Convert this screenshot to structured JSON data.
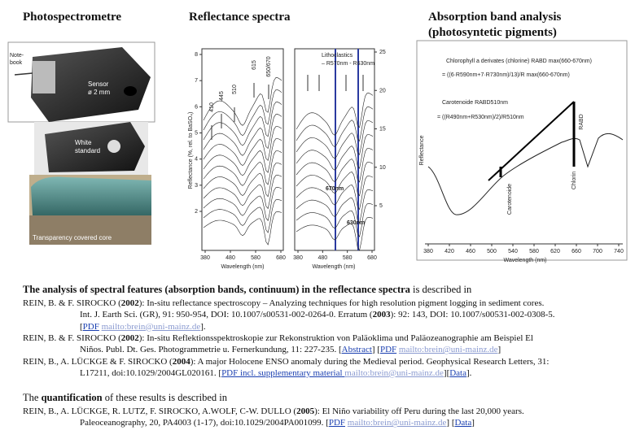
{
  "headings": {
    "photo": "Photospectrometre",
    "spectra": "Reflectance spectra",
    "absorption": [
      "Absorption band analysis",
      "(photosyntetic pigments)"
    ]
  },
  "photos": {
    "notebook": [
      "Note-",
      "book"
    ],
    "sensor": [
      "Sensor",
      "ø 2 mm"
    ],
    "white": [
      "White",
      "standard"
    ],
    "core": "Transparency covered core"
  },
  "figures": {
    "reflectance_left": {
      "ylabel": "Reflectance (%, rel. to BaSO₄)",
      "xlabel": "Wavelength (nm)",
      "yticks": [
        2,
        3,
        4,
        5,
        6,
        7,
        8
      ],
      "xticks": [
        380,
        480,
        580,
        680
      ],
      "annotations": [
        "410",
        "445",
        "510",
        "615",
        "650/670"
      ]
    },
    "reflectance_right": {
      "title": [
        "Lithoclastics",
        "– R570nm - R630nm"
      ],
      "xlabel": "Wavelength (nm)",
      "yticks": [
        5,
        10,
        15,
        20,
        25
      ],
      "xticks": [
        380,
        480,
        580,
        680
      ],
      "annotations": [
        "670nm",
        "630nm"
      ]
    },
    "absorption": {
      "ylabel": "Reflectance",
      "xlabel": "Wavelength (nm)",
      "xticks": [
        380,
        420,
        460,
        500,
        540,
        580,
        620,
        660,
        700,
        740
      ],
      "chlorophyll": [
        "Chlorophyll a derivates (chlorine) RABD max(660-670nm)",
        "= ((6·R590nm+7·R730nm)/13)/R max(660-670nm)"
      ],
      "carotenoid": [
        "Carotenoide RABD510nm",
        "= ((R490nm+R530nm)/2)/R510nm"
      ],
      "labels": [
        "RABD",
        "Chlorin",
        "Carotenoide"
      ]
    }
  },
  "intro": [
    {
      "text": "The analysis of spectral  features (absorption bands, continuum) in the reflectance spectra",
      "bold": true
    },
    {
      "text": " is described in"
    }
  ],
  "references1": [
    [
      {
        "text": "REIN, B. & F. SIROCKO ("
      },
      {
        "text": "2002",
        "bold": true
      },
      {
        "text": "): In-situ reflectance spectroscopy – Analyzing techniques for high resolution pigment logging in sediment cores."
      }
    ],
    [
      {
        "text": "Int. J. Earth Sci. (GR), 91: 950-954, DOI: 10.1007/s00531-002-0264-0. Erratum ("
      },
      {
        "text": "2003",
        "bold": true
      },
      {
        "text": "): 92: 143,  DOI: 10.1007/s00531-002-0308-5."
      }
    ],
    [
      {
        "text": "["
      },
      {
        "text": "PDF",
        "link": true
      },
      {
        "text": " "
      },
      {
        "text": "mailto:brein@uni-mainz.de",
        "link": true
      },
      {
        "text": "]."
      }
    ],
    [
      {
        "text": "REIN, B. & F. SIROCKO ("
      },
      {
        "text": "2002",
        "bold": true
      },
      {
        "text": "): In-situ Reflektionsspektroskopie zur Rekonstruktion von Paläoklima und Paläozeanographie am Beispiel El"
      }
    ],
    [
      {
        "text": "Niños. Publ. Dt. Ges. Photogrammetrie u. Fernerkundung, 11: 227-235. ["
      },
      {
        "text": "Abstract",
        "link": true
      },
      {
        "text": "]  ["
      },
      {
        "text": "PDF",
        "link": true
      },
      {
        "text": " "
      },
      {
        "text": "mailto:brein@uni-mainz.de",
        "link": true
      },
      {
        "text": "]"
      }
    ],
    [
      {
        "text": "REIN, B., A. LÜCKGE & F. SIROCKO ("
      },
      {
        "text": "2004",
        "bold": true
      },
      {
        "text": "): A major Holocene ENSO anomaly during the Medieval period. Geophysical Research Letters, 31:"
      }
    ],
    [
      {
        "text": "L17211, doi:10.1029/2004GL020161. ["
      },
      {
        "text": "PDF incl. supplementary material ",
        "link": true
      },
      {
        "text": " "
      },
      {
        "text": "mailto:brein@uni-mainz.de",
        "link": true
      },
      {
        "text": "]["
      },
      {
        "text": "Data",
        "link": true
      },
      {
        "text": "]."
      }
    ]
  ],
  "quantification": [
    {
      "text": "The "
    },
    {
      "text": "quantification",
      "bold": true
    },
    {
      "text": " of  these results is described in"
    }
  ],
  "references2": [
    [
      {
        "text": "REIN, B., A. LÜCKGE, R. LUTZ, F. SIROCKO, A.WOLF, C-W. DULLO ("
      },
      {
        "text": "2005",
        "bold": true
      },
      {
        "text": "): El Niño variability off Peru during the last 20,000 years."
      }
    ],
    [
      {
        "text": "Paleoceanography, 20, PA4003 (1-17), doi:10.1029/2004PA001099.  ["
      },
      {
        "text": "PDF",
        "link": true
      },
      {
        "text": " "
      },
      {
        "text": "mailto:brein@uni-mainz.de",
        "link": true
      },
      {
        "text": "]  ["
      },
      {
        "text": "Data",
        "link": true
      },
      {
        "text": "]"
      }
    ]
  ]
}
